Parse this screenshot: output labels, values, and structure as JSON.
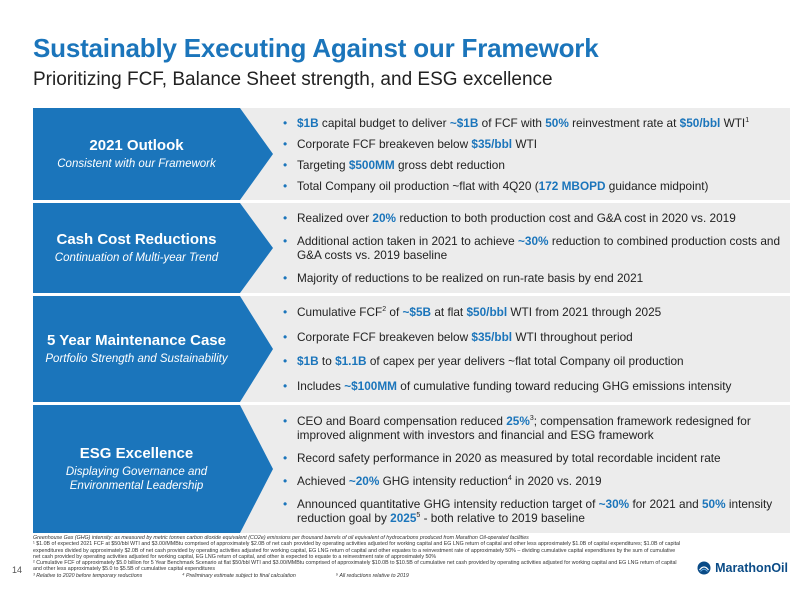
{
  "title": "Sustainably Executing Against our Framework",
  "subtitle": "Prioritizing FCF, Balance Sheet strength, and ESG excellence",
  "sections": [
    {
      "title": "2021 Outlook",
      "subtitle": "Consistent with our Framework",
      "bullets": [
        [
          [
            "h",
            "$1B"
          ],
          [
            "t",
            " capital budget to deliver "
          ],
          [
            "h",
            "~$1B"
          ],
          [
            "t",
            " of FCF with "
          ],
          [
            "h",
            "50%"
          ],
          [
            "t",
            " reinvestment rate at "
          ],
          [
            "h",
            "$50/bbl"
          ],
          [
            "t",
            " WTI"
          ],
          [
            "s",
            "1"
          ]
        ],
        [
          [
            "t",
            "Corporate FCF breakeven below "
          ],
          [
            "h",
            "$35/bbl"
          ],
          [
            "t",
            " WTI"
          ]
        ],
        [
          [
            "t",
            "Targeting "
          ],
          [
            "h",
            "$500MM"
          ],
          [
            "t",
            " gross debt reduction"
          ]
        ],
        [
          [
            "t",
            "Total Company oil production ~flat with 4Q20 ("
          ],
          [
            "h",
            "172 MBOPD"
          ],
          [
            "t",
            " guidance midpoint)"
          ]
        ]
      ]
    },
    {
      "title": "Cash Cost Reductions",
      "subtitle": "Continuation of Multi-year Trend",
      "bullets": [
        [
          [
            "t",
            "Realized over "
          ],
          [
            "h",
            "20%"
          ],
          [
            "t",
            " reduction to both production cost and G&A cost in 2020 vs. 2019"
          ]
        ],
        [
          [
            "t",
            "Additional action taken in 2021 to achieve "
          ],
          [
            "h",
            "~30%"
          ],
          [
            "t",
            " reduction to combined production costs and G&A costs vs. 2019 baseline"
          ]
        ],
        [
          [
            "t",
            "Majority of reductions to be realized on run-rate basis by end 2021"
          ]
        ]
      ]
    },
    {
      "title": "5 Year Maintenance Case",
      "subtitle": "Portfolio Strength and Sustainability",
      "bullets": [
        [
          [
            "t",
            "Cumulative FCF"
          ],
          [
            "s",
            "2"
          ],
          [
            "t",
            " of "
          ],
          [
            "h",
            "~$5B"
          ],
          [
            "t",
            " at flat "
          ],
          [
            "h",
            "$50/bbl"
          ],
          [
            "t",
            " WTI from 2021 through 2025"
          ]
        ],
        [
          [
            "t",
            "Corporate FCF breakeven below "
          ],
          [
            "h",
            "$35/bbl"
          ],
          [
            "t",
            " WTI throughout period"
          ]
        ],
        [
          [
            "h",
            "$1B"
          ],
          [
            "t",
            " to "
          ],
          [
            "h",
            "$1.1B"
          ],
          [
            "t",
            " of capex per year delivers ~flat total Company oil production"
          ]
        ],
        [
          [
            "t",
            "Includes "
          ],
          [
            "h",
            "~$100MM"
          ],
          [
            "t",
            " of cumulative funding toward reducing GHG emissions intensity"
          ]
        ]
      ]
    },
    {
      "title": "ESG Excellence",
      "subtitle": "Displaying Governance and Environmental Leadership",
      "bullets": [
        [
          [
            "t",
            "CEO and Board compensation reduced "
          ],
          [
            "h",
            "25%"
          ],
          [
            "s",
            "3"
          ],
          [
            "t",
            "; compensation framework redesigned for improved alignment with investors and financial and ESG framework"
          ]
        ],
        [
          [
            "t",
            "Record safety performance in 2020 as measured by total recordable incident rate"
          ]
        ],
        [
          [
            "t",
            "Achieved "
          ],
          [
            "h",
            "~20%"
          ],
          [
            "t",
            " GHG intensity reduction"
          ],
          [
            "s",
            "4"
          ],
          [
            "t",
            " in 2020 vs. 2019"
          ]
        ],
        [
          [
            "t",
            "Announced quantitative GHG intensity reduction target of "
          ],
          [
            "h",
            "~30%"
          ],
          [
            "t",
            " for 2021 and "
          ],
          [
            "h",
            "50%"
          ],
          [
            "t",
            " intensity reduction goal by "
          ],
          [
            "h",
            "2025"
          ],
          [
            "s",
            "5"
          ],
          [
            "t",
            " - both relative to 2019 baseline"
          ]
        ]
      ]
    }
  ],
  "footnotes": {
    "ghg": "Greenhouse Gas (GHG) intensity: as measured by metric tonnes carbon dioxide equivalent (CO2e) emissions per thousand barrels of oil equivalent of hydrocarbons produced from Marathon Oil-operated facilities",
    "fn1": "¹ $1.0B of expected 2021 FCF at $50/bbl WTI and $3.00/MMBtu comprised of approximately $2.0B of net cash provided by operating activities adjusted for working capital and EG LNG return of capital and other less approximately $1.0B of capital expenditures; $1.0B of capital expenditures divided by approximately $2.0B of net cash provided by operating activities adjusted for working capital, EG LNG return of capital and other equates to a reinvestment rate of approximately 50% – dividing cumulative capital expenditures by the sum of cumulative net cash provided by operating activities adjusted for working capital, EG LNG return of capital, and other is expected to equate to a reinvestment rate of approximately 50%",
    "fn2": "² Cumulative FCF of approximately $5.0 billion for 5 Year Benchmark Scenario at flat $50/bbl WTI and $3.00/MMBtu comprised of approximately $10.0B to $10.5B of cumulative net cash provided by operating activities adjusted for working capital and EG LNG return of capital and other less approximately $5.0 to $5.5B of cumulative capital expenditures",
    "fn3": "³ Relative to 2020 before temporary reductions",
    "fn4": "⁴ Preliminary estimate subject to final calculation",
    "fn5": "⁵ All reductions relative to 2019"
  },
  "page_number": "14",
  "logo": {
    "text": "MarathonOil",
    "icon": "marathon-oil-logo-icon"
  },
  "colors": {
    "accent": "#1b75bb",
    "panel": "#ececec",
    "logo": "#0a4b86"
  }
}
